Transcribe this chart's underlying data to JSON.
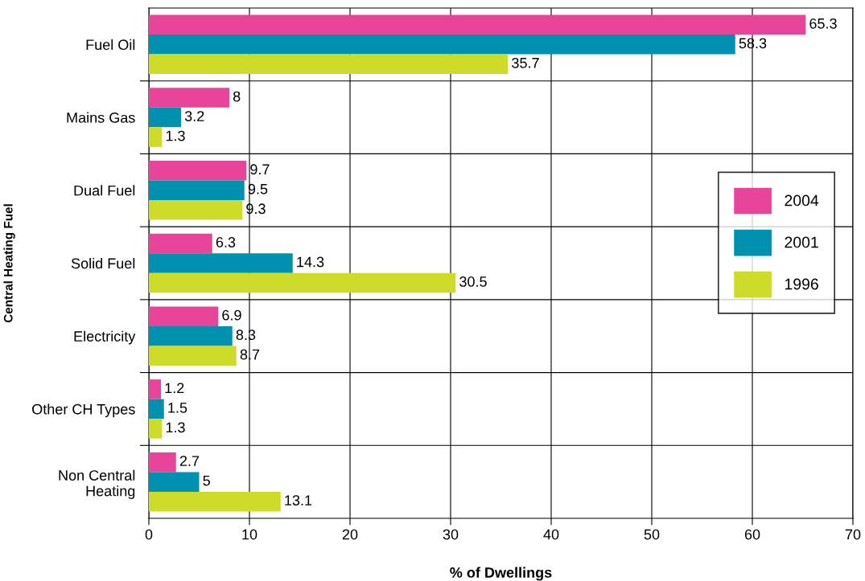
{
  "chart_data": {
    "type": "bar",
    "orientation": "horizontal",
    "categories": [
      "Fuel Oil",
      "Mains Gas",
      "Dual Fuel",
      "Solid Fuel",
      "Electricity",
      "Other CH Types",
      "Non Central\nHeating"
    ],
    "series": [
      {
        "name": "2004",
        "color": "#e8449a",
        "values": [
          65.3,
          8,
          9.7,
          6.3,
          6.9,
          1.2,
          2.7
        ]
      },
      {
        "name": "2001",
        "color": "#0090b0",
        "values": [
          58.3,
          3.2,
          9.5,
          14.3,
          8.3,
          1.5,
          5
        ]
      },
      {
        "name": "1996",
        "color": "#cddc29",
        "values": [
          35.7,
          1.3,
          9.3,
          30.5,
          8.7,
          1.3,
          13.1
        ]
      }
    ],
    "xlim": [
      0,
      70
    ],
    "xticks": [
      0,
      10,
      20,
      30,
      40,
      50,
      60,
      70
    ],
    "xlabel": "% of Dwellings",
    "ylabel": "Central Heating Fuel",
    "grid": true,
    "legend": "center right",
    "data_labels": true
  }
}
